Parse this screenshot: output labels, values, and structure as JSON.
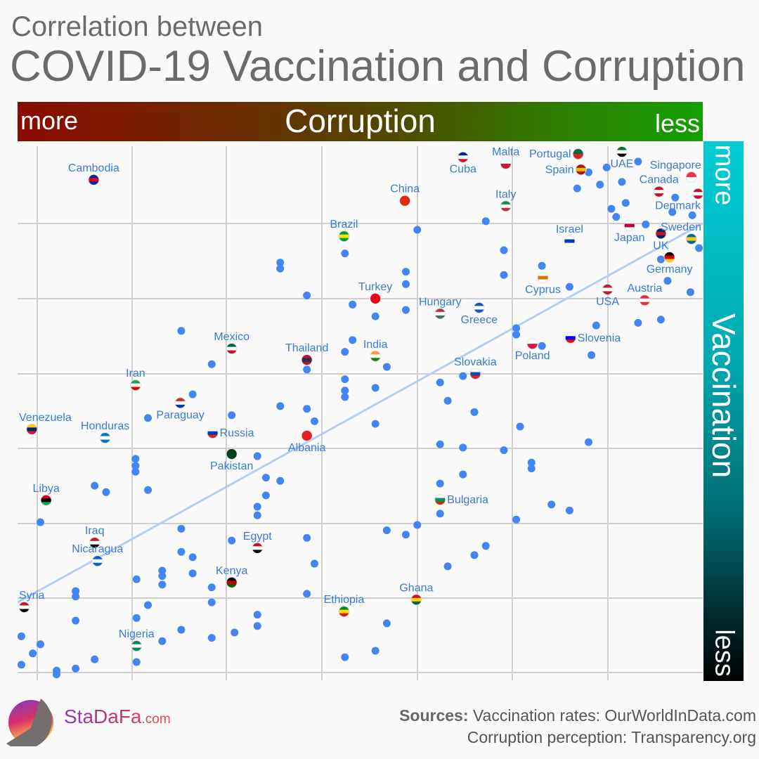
{
  "title": {
    "line1": "Correlation between",
    "line2": "COVID-19 Vaccination and Corruption"
  },
  "corruption_bar": {
    "left": "more",
    "center": "Corruption",
    "right": "less"
  },
  "vaccination_bar": {
    "top": "more",
    "center": "Vaccination",
    "bottom": "less"
  },
  "footer": {
    "brand": "StaDaFa",
    "brand_suffix": ".com",
    "sources_label": "Sources:",
    "sources_line1": "Vaccination rates: OurWorldInData.com",
    "sources_line2": "Corruption perception: Transparency.org"
  },
  "chart_data": {
    "type": "scatter",
    "title": "",
    "xlabel": "Corruption",
    "ylabel": "Vaccination",
    "x_direction": "more corruption left, less corruption right",
    "y_direction": "more vaccination top, less vaccination bottom",
    "xlim": [
      13,
      85
    ],
    "ylim": [
      0,
      100
    ],
    "grid": true,
    "point_color": "#4285f4",
    "trendline_color": "#b3cdf5",
    "trendline": [
      [
        13,
        14.1
      ],
      [
        85,
        84.6
      ]
    ],
    "labeled_points": [
      {
        "name": "Cambodia",
        "x": 21.0,
        "y": 92.7,
        "pos": "above",
        "flag": [
          "#032ea1",
          "#e00025",
          "#032ea1"
        ]
      },
      {
        "name": "Cuba",
        "x": 59.8,
        "y": 96.9,
        "pos": "below",
        "flag": [
          "#002a8f",
          "#ffffff",
          "#cf142b"
        ]
      },
      {
        "name": "Malta",
        "x": 64.3,
        "y": 95.7,
        "pos": "above",
        "flag": [
          "#ffffff",
          "#cf142b"
        ]
      },
      {
        "name": "Portugal",
        "x": 71.9,
        "y": 97.5,
        "pos": "left",
        "flag": [
          "#046a38",
          "#da291c"
        ]
      },
      {
        "name": "UAE",
        "x": 76.5,
        "y": 97.9,
        "pos": "below",
        "flag": [
          "#00732f",
          "#ffffff",
          "#000000"
        ]
      },
      {
        "name": "Spain",
        "x": 72.2,
        "y": 94.6,
        "pos": "left",
        "flag": [
          "#aa151b",
          "#f1bf00",
          "#aa151b"
        ]
      },
      {
        "name": "Singapore",
        "x": 83.8,
        "y": 93.2,
        "pos": "above-left",
        "flag": [
          "#ef3340",
          "#ffffff"
        ]
      },
      {
        "name": "China",
        "x": 53.7,
        "y": 88.8,
        "pos": "above",
        "flag": [
          "#de2910",
          "#de2910"
        ]
      },
      {
        "name": "Canada",
        "x": 80.4,
        "y": 90.5,
        "pos": "above",
        "flag": [
          "#d80621",
          "#ffffff",
          "#d80621"
        ]
      },
      {
        "name": "Denmark",
        "x": 84.5,
        "y": 90.1,
        "pos": "below-left",
        "flag": [
          "#c8102e",
          "#ffffff",
          "#c8102e"
        ]
      },
      {
        "name": "Italy",
        "x": 64.3,
        "y": 87.8,
        "pos": "above",
        "flag": [
          "#009246",
          "#ffffff",
          "#ce2b37"
        ]
      },
      {
        "name": "Brazil",
        "x": 47.3,
        "y": 82.2,
        "pos": "above",
        "flag": [
          "#009c3b",
          "#ffdf00",
          "#009c3b"
        ]
      },
      {
        "name": "Japan",
        "x": 77.3,
        "y": 84.2,
        "pos": "below",
        "flag": [
          "#ffffff",
          "#bc002d",
          "#ffffff"
        ]
      },
      {
        "name": "UK",
        "x": 80.6,
        "y": 82.7,
        "pos": "below",
        "flag": [
          "#012169",
          "#c8102e",
          "#012169"
        ]
      },
      {
        "name": "Sweden",
        "x": 83.8,
        "y": 81.7,
        "pos": "above",
        "flag": [
          "#006aa7",
          "#fecc00",
          "#006aa7"
        ]
      },
      {
        "name": "Israel",
        "x": 71.0,
        "y": 81.3,
        "pos": "above",
        "flag": [
          "#ffffff",
          "#0038b8",
          "#ffffff"
        ]
      },
      {
        "name": "Germany",
        "x": 81.5,
        "y": 78.3,
        "pos": "below",
        "flag": [
          "#000000",
          "#dd0000",
          "#ffce00"
        ]
      },
      {
        "name": "Cyprus",
        "x": 68.2,
        "y": 74.5,
        "pos": "below",
        "flag": [
          "#ffffff",
          "#d57800",
          "#ffffff"
        ]
      },
      {
        "name": "Turkey",
        "x": 50.6,
        "y": 70.6,
        "pos": "above",
        "flag": [
          "#e30a17",
          "#e30a17"
        ]
      },
      {
        "name": "Austria",
        "x": 78.9,
        "y": 70.3,
        "pos": "above",
        "flag": [
          "#ed2939",
          "#ffffff",
          "#ed2939"
        ]
      },
      {
        "name": "USA",
        "x": 75.0,
        "y": 72.3,
        "pos": "below",
        "flag": [
          "#b22234",
          "#ffffff",
          "#b22234"
        ]
      },
      {
        "name": "Hungary",
        "x": 57.4,
        "y": 67.8,
        "pos": "above",
        "flag": [
          "#ce2939",
          "#ffffff",
          "#477050"
        ]
      },
      {
        "name": "Greece",
        "x": 61.5,
        "y": 68.9,
        "pos": "below",
        "flag": [
          "#0d5eaf",
          "#ffffff",
          "#0d5eaf"
        ]
      },
      {
        "name": "Slovenia",
        "x": 71.1,
        "y": 63.3,
        "pos": "right",
        "flag": [
          "#ffffff",
          "#0000ff",
          "#ff0000"
        ]
      },
      {
        "name": "Poland",
        "x": 67.1,
        "y": 62.2,
        "pos": "below",
        "flag": [
          "#ffffff",
          "#dc143c"
        ]
      },
      {
        "name": "Mexico",
        "x": 35.5,
        "y": 61.3,
        "pos": "above",
        "flag": [
          "#006847",
          "#ffffff",
          "#ce1126"
        ]
      },
      {
        "name": "Thailand",
        "x": 43.4,
        "y": 59.2,
        "pos": "above",
        "flag": [
          "#a51931",
          "#2d2a4a",
          "#a51931"
        ]
      },
      {
        "name": "India",
        "x": 50.6,
        "y": 59.9,
        "pos": "above",
        "flag": [
          "#ff9933",
          "#ffffff",
          "#138808"
        ]
      },
      {
        "name": "Slovakia",
        "x": 61.1,
        "y": 56.6,
        "pos": "above",
        "flag": [
          "#ffffff",
          "#0b4ea2",
          "#ee1c25"
        ]
      },
      {
        "name": "Iran",
        "x": 25.4,
        "y": 54.5,
        "pos": "above",
        "flag": [
          "#239f40",
          "#ffffff",
          "#da0000"
        ]
      },
      {
        "name": "Paraguay",
        "x": 30.1,
        "y": 51.2,
        "pos": "below",
        "flag": [
          "#d52b1e",
          "#ffffff",
          "#0038a8"
        ]
      },
      {
        "name": "Venezuela",
        "x": 14.5,
        "y": 46.3,
        "pos": "above",
        "flag": [
          "#ffcc00",
          "#00247d",
          "#cf142b"
        ]
      },
      {
        "name": "Honduras",
        "x": 22.2,
        "y": 44.7,
        "pos": "above",
        "flag": [
          "#0073cf",
          "#ffffff",
          "#0073cf"
        ]
      },
      {
        "name": "Russia",
        "x": 33.5,
        "y": 45.6,
        "pos": "right",
        "flag": [
          "#ffffff",
          "#0039a6",
          "#d52b1e"
        ]
      },
      {
        "name": "Albania",
        "x": 43.4,
        "y": 45.1,
        "pos": "below",
        "flag": [
          "#e41e20",
          "#e41e20"
        ]
      },
      {
        "name": "Pakistan",
        "x": 35.5,
        "y": 41.7,
        "pos": "below",
        "flag": [
          "#01411c",
          "#01411c"
        ]
      },
      {
        "name": "Libya",
        "x": 16.0,
        "y": 33.1,
        "pos": "above",
        "flag": [
          "#e70013",
          "#000000",
          "#239e46"
        ]
      },
      {
        "name": "Bulgaria",
        "x": 57.4,
        "y": 33.2,
        "pos": "right",
        "flag": [
          "#ffffff",
          "#00966e",
          "#d62612"
        ]
      },
      {
        "name": "Iraq",
        "x": 21.1,
        "y": 25.2,
        "pos": "above",
        "flag": [
          "#ce1126",
          "#ffffff",
          "#000000"
        ]
      },
      {
        "name": "Egypt",
        "x": 38.2,
        "y": 24.2,
        "pos": "above",
        "flag": [
          "#ce1126",
          "#ffffff",
          "#000000"
        ]
      },
      {
        "name": "Nicaragua",
        "x": 21.4,
        "y": 21.8,
        "pos": "above",
        "flag": [
          "#0067c6",
          "#ffffff",
          "#0067c6"
        ]
      },
      {
        "name": "Kenya",
        "x": 35.5,
        "y": 17.8,
        "pos": "above",
        "flag": [
          "#000000",
          "#bb0000",
          "#006600"
        ]
      },
      {
        "name": "Syria",
        "x": 13.7,
        "y": 13.2,
        "pos": "above",
        "flag": [
          "#ce1126",
          "#ffffff",
          "#000000"
        ]
      },
      {
        "name": "Ghana",
        "x": 54.9,
        "y": 14.6,
        "pos": "above",
        "flag": [
          "#ce1126",
          "#fcd116",
          "#006b3f"
        ]
      },
      {
        "name": "Ethiopia",
        "x": 47.3,
        "y": 12.4,
        "pos": "above",
        "flag": [
          "#078930",
          "#fcdd09",
          "#da121a"
        ]
      },
      {
        "name": "Nigeria",
        "x": 25.5,
        "y": 6.0,
        "pos": "above",
        "flag": [
          "#008751",
          "#ffffff",
          "#008751"
        ]
      }
    ],
    "points": [
      [
        74.9,
        95.0
      ],
      [
        73.0,
        94.1
      ],
      [
        78.2,
        96.1
      ],
      [
        74.2,
        91.8
      ],
      [
        71.8,
        91.1
      ],
      [
        76.5,
        92.3
      ],
      [
        82.1,
        89.4
      ],
      [
        75.4,
        87.3
      ],
      [
        76.9,
        88.4
      ],
      [
        75.9,
        85.8
      ],
      [
        79.0,
        84.4
      ],
      [
        81.8,
        86.7
      ],
      [
        83.9,
        86.1
      ],
      [
        62.2,
        85.0
      ],
      [
        55.0,
        83.4
      ],
      [
        47.4,
        79.0
      ],
      [
        40.6,
        77.3
      ],
      [
        40.6,
        76.2
      ],
      [
        53.8,
        75.6
      ],
      [
        64.1,
        79.6
      ],
      [
        64.1,
        75.0
      ],
      [
        68.1,
        76.7
      ],
      [
        71.0,
        72.8
      ],
      [
        80.6,
        77.9
      ],
      [
        84.6,
        80.0
      ],
      [
        83.7,
        71.8
      ],
      [
        81.3,
        73.9
      ],
      [
        53.8,
        73.3
      ],
      [
        43.4,
        71.2
      ],
      [
        48.2,
        69.5
      ],
      [
        53.8,
        68.5
      ],
      [
        50.6,
        67.3
      ],
      [
        65.4,
        65.1
      ],
      [
        65.4,
        63.9
      ],
      [
        78.2,
        66.1
      ],
      [
        80.6,
        66.7
      ],
      [
        73.8,
        65.6
      ],
      [
        68.1,
        61.8
      ],
      [
        73.3,
        60.1
      ],
      [
        30.2,
        64.6
      ],
      [
        33.4,
        58.4
      ],
      [
        47.4,
        60.7
      ],
      [
        48.2,
        62.9
      ],
      [
        43.4,
        57.4
      ],
      [
        51.8,
        57.9
      ],
      [
        59.8,
        56.2
      ],
      [
        57.4,
        55.0
      ],
      [
        31.4,
        52.8
      ],
      [
        47.4,
        55.6
      ],
      [
        47.4,
        53.5
      ],
      [
        47.4,
        52.3
      ],
      [
        50.6,
        54.0
      ],
      [
        58.2,
        51.6
      ],
      [
        61.0,
        49.5
      ],
      [
        40.6,
        50.6
      ],
      [
        43.4,
        50.1
      ],
      [
        44.2,
        47.8
      ],
      [
        35.5,
        48.9
      ],
      [
        26.7,
        48.4
      ],
      [
        50.6,
        47.3
      ],
      [
        65.8,
        46.8
      ],
      [
        57.4,
        43.5
      ],
      [
        59.8,
        42.9
      ],
      [
        64.1,
        42.4
      ],
      [
        73.0,
        43.9
      ],
      [
        67.0,
        40.1
      ],
      [
        67.0,
        39.0
      ],
      [
        59.8,
        37.9
      ],
      [
        57.4,
        36.2
      ],
      [
        57.4,
        30.6
      ],
      [
        38.2,
        41.3
      ],
      [
        25.4,
        40.8
      ],
      [
        25.4,
        39.5
      ],
      [
        25.4,
        38.4
      ],
      [
        39.1,
        37.3
      ],
      [
        40.6,
        36.7
      ],
      [
        26.7,
        35.0
      ],
      [
        21.1,
        35.8
      ],
      [
        22.3,
        34.6
      ],
      [
        39.1,
        34.0
      ],
      [
        38.2,
        31.9
      ],
      [
        38.2,
        30.3
      ],
      [
        15.4,
        29.0
      ],
      [
        69.1,
        32.3
      ],
      [
        71.0,
        31.2
      ],
      [
        65.4,
        29.5
      ],
      [
        55.0,
        28.5
      ],
      [
        53.8,
        26.7
      ],
      [
        51.8,
        27.5
      ],
      [
        30.2,
        27.8
      ],
      [
        35.5,
        25.6
      ],
      [
        43.4,
        26.1
      ],
      [
        62.2,
        24.6
      ],
      [
        61.0,
        22.9
      ],
      [
        58.2,
        20.8
      ],
      [
        44.2,
        21.3
      ],
      [
        30.2,
        23.5
      ],
      [
        31.4,
        22.5
      ],
      [
        31.4,
        19.5
      ],
      [
        28.2,
        20.0
      ],
      [
        28.2,
        19.0
      ],
      [
        28.2,
        17.4
      ],
      [
        25.5,
        18.4
      ],
      [
        33.4,
        16.9
      ],
      [
        19.1,
        16.2
      ],
      [
        19.1,
        15.2
      ],
      [
        43.4,
        15.7
      ],
      [
        26.7,
        13.6
      ],
      [
        33.4,
        14.1
      ],
      [
        38.2,
        11.8
      ],
      [
        38.2,
        9.7
      ],
      [
        51.8,
        10.2
      ],
      [
        19.1,
        10.7
      ],
      [
        25.5,
        11.2
      ],
      [
        13.4,
        7.8
      ],
      [
        15.4,
        6.3
      ],
      [
        14.6,
        4.6
      ],
      [
        13.4,
        2.5
      ],
      [
        17.1,
        1.4
      ],
      [
        17.1,
        0.7
      ],
      [
        19.1,
        1.8
      ],
      [
        21.1,
        3.5
      ],
      [
        25.5,
        3.0
      ],
      [
        30.2,
        9.0
      ],
      [
        28.2,
        6.9
      ],
      [
        33.4,
        7.5
      ],
      [
        35.8,
        8.5
      ],
      [
        47.4,
        3.9
      ],
      [
        50.6,
        5.1
      ]
    ]
  }
}
